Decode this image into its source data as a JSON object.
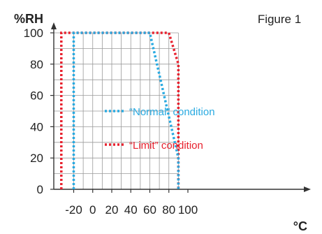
{
  "figure_label": "Figure 1",
  "chart_data": {
    "type": "line",
    "title": "",
    "ylabel": "%RH",
    "xlabel": "°C",
    "xlim": [
      -33,
      100
    ],
    "ylim": [
      0,
      100
    ],
    "x_ticks": [
      -20,
      0,
      20,
      40,
      60,
      80,
      100
    ],
    "y_ticks": [
      0,
      20,
      40,
      60,
      80,
      100
    ],
    "grid": true,
    "legend_position": "center",
    "series": [
      {
        "name": "“Normal” condition",
        "color": "#29aae1",
        "points": [
          [
            -20,
            0
          ],
          [
            -20,
            100
          ],
          [
            60,
            100
          ],
          [
            90,
            20
          ],
          [
            90,
            0
          ]
        ]
      },
      {
        "name": "“Limit” condition",
        "color": "#e8212e",
        "points": [
          [
            -33,
            0
          ],
          [
            -33,
            100
          ],
          [
            80,
            100
          ],
          [
            90,
            80
          ],
          [
            90,
            0
          ]
        ]
      }
    ]
  }
}
